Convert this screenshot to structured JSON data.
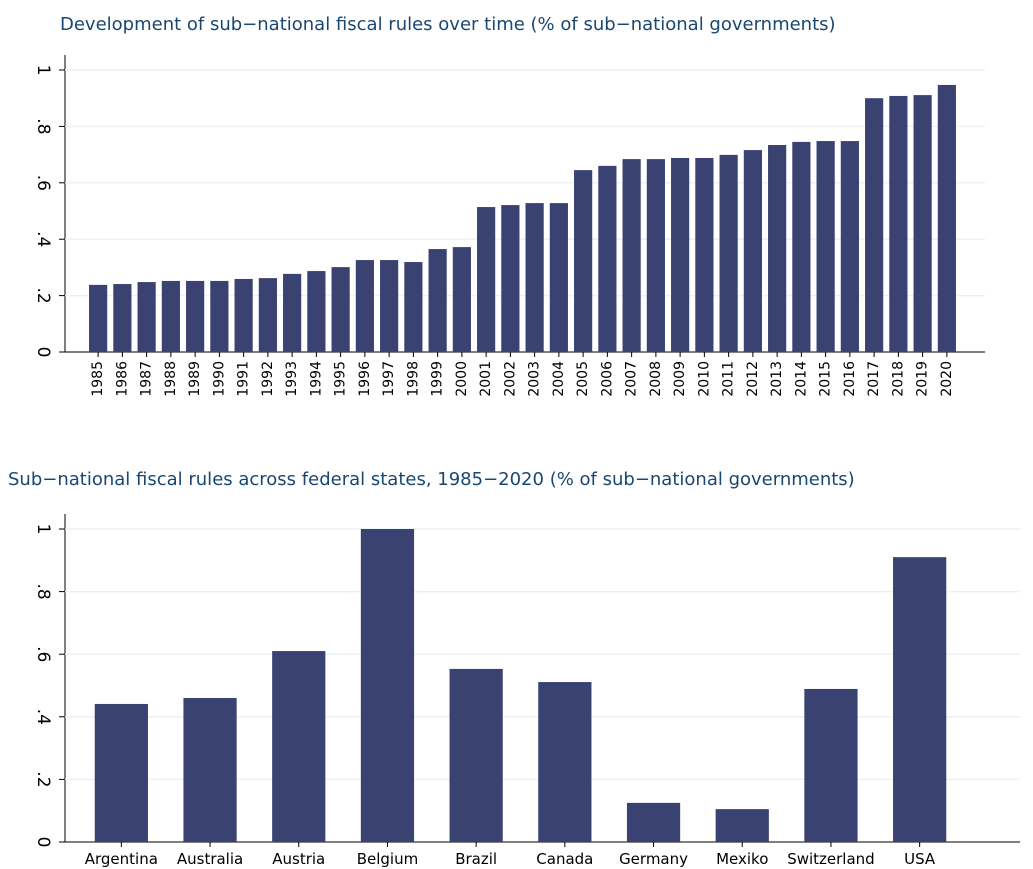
{
  "chart_data": [
    {
      "type": "bar",
      "title": "Development of sub−national fiscal rules over time (% of sub−national governments)",
      "categories": [
        "1985",
        "1986",
        "1987",
        "1988",
        "1989",
        "1990",
        "1991",
        "1992",
        "1993",
        "1994",
        "1995",
        "1996",
        "1997",
        "1998",
        "1999",
        "2000",
        "2001",
        "2002",
        "2003",
        "2004",
        "2005",
        "2006",
        "2007",
        "2008",
        "2009",
        "2010",
        "2011",
        "2012",
        "2013",
        "2014",
        "2015",
        "2016",
        "2017",
        "2018",
        "2019",
        "2020"
      ],
      "values": [
        0.238,
        0.241,
        0.248,
        0.252,
        0.252,
        0.252,
        0.259,
        0.262,
        0.277,
        0.287,
        0.301,
        0.326,
        0.326,
        0.319,
        0.365,
        0.372,
        0.514,
        0.521,
        0.528,
        0.528,
        0.645,
        0.66,
        0.684,
        0.684,
        0.688,
        0.688,
        0.699,
        0.716,
        0.734,
        0.745,
        0.748,
        0.748,
        0.9,
        0.908,
        0.911,
        0.947
      ],
      "color": "#3a4272",
      "ylim": [
        0,
        1
      ],
      "yticks": [
        0,
        {
          "value": 0.2,
          "label": ".2"
        },
        {
          "value": 0.4,
          "label": ".4"
        },
        {
          "value": 0.6,
          "label": ".6"
        },
        {
          "value": 0.8,
          "label": ".8"
        },
        1
      ],
      "grid": true
    },
    {
      "type": "bar",
      "title": "Sub−national fiscal rules across federal states, 1985−2020 (% of sub−national governments)",
      "categories": [
        "Argentina",
        "Australia",
        "Austria",
        "Belgium",
        "Brazil",
        "Canada",
        "Germany",
        "Mexiko",
        "Switzerland",
        "USA"
      ],
      "values": [
        0.441,
        0.46,
        0.61,
        1.0,
        0.553,
        0.511,
        0.125,
        0.105,
        0.489,
        0.91
      ],
      "color": "#3a4272",
      "ylim": [
        0,
        1
      ],
      "yticks": [
        0,
        {
          "value": 0.2,
          "label": ".2"
        },
        {
          "value": 0.4,
          "label": ".4"
        },
        {
          "value": 0.6,
          "label": ".6"
        },
        {
          "value": 0.8,
          "label": ".8"
        },
        1
      ],
      "grid": true
    }
  ]
}
